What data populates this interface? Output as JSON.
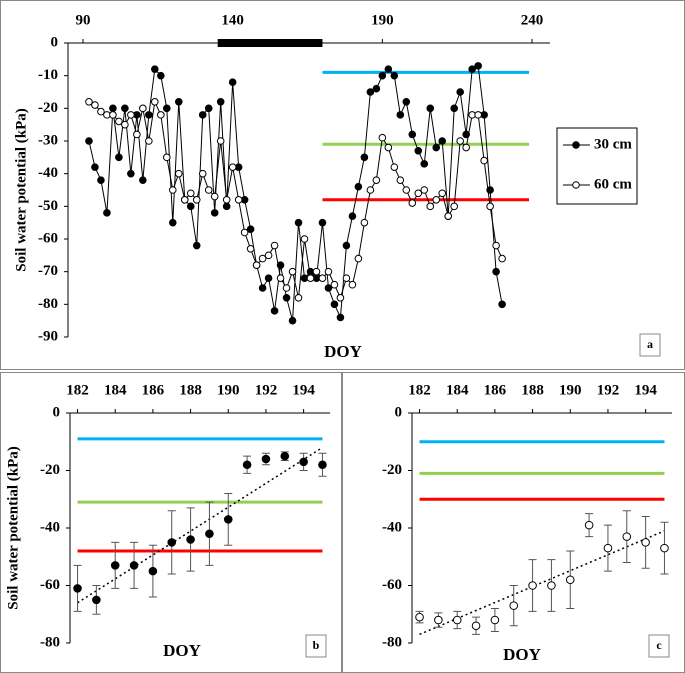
{
  "chart_data": [
    {
      "type": "line",
      "panel": "a",
      "xlabel": "DOY",
      "ylabel": "Soil water potential (kPa)",
      "xlim": [
        85,
        246
      ],
      "xticks": [
        90,
        140,
        190,
        240
      ],
      "ylim": [
        -90,
        0
      ],
      "yticks": [
        0,
        -10,
        -20,
        -30,
        -40,
        -50,
        -60,
        -70,
        -80,
        -90
      ],
      "bar_x": [
        135,
        170
      ],
      "bar_color": "#000000",
      "reference_lines": [
        {
          "value": -9,
          "color": "#00b0f0",
          "x": [
            170,
            239
          ]
        },
        {
          "value": -31,
          "color": "#92d050",
          "x": [
            170,
            239
          ]
        },
        {
          "value": -48,
          "color": "#ff0000",
          "x": [
            170,
            239
          ]
        }
      ],
      "x": [
        92,
        94,
        96,
        98,
        100,
        102,
        104,
        106,
        108,
        110,
        112,
        114,
        116,
        118,
        120,
        122,
        124,
        126,
        128,
        130,
        132,
        134,
        136,
        138,
        140,
        142,
        144,
        146,
        148,
        150,
        152,
        154,
        156,
        158,
        160,
        162,
        164,
        166,
        168,
        170,
        172,
        174,
        176,
        178,
        180,
        182,
        184,
        186,
        188,
        190,
        192,
        194,
        196,
        198,
        200,
        202,
        204,
        206,
        208,
        210,
        212,
        214,
        216,
        218,
        220,
        222,
        224,
        226,
        228,
        230
      ],
      "series": [
        {
          "name": "30 cm",
          "color": "#000000",
          "fill": "#000000",
          "values": [
            -30,
            -38,
            -42,
            -52,
            -20,
            -35,
            -20,
            -40,
            -22,
            -42,
            -22,
            -8,
            -10,
            -20,
            -55,
            -18,
            -48,
            -50,
            -62,
            -22,
            -20,
            -52,
            -18,
            -50,
            -12,
            -38,
            -48,
            -57,
            -68,
            -75,
            -72,
            -82,
            -68,
            -78,
            -85,
            -55,
            -72,
            -70,
            -72,
            -55,
            -75,
            -80,
            -84,
            -62,
            -53,
            -44,
            -35,
            -15,
            -14,
            -10,
            -8,
            -10,
            -22,
            -18,
            -28,
            -33,
            -37,
            -20,
            -32,
            -30,
            -53,
            -20,
            -15,
            -28,
            -8,
            -7,
            -22,
            -45,
            -70,
            -80
          ]
        },
        {
          "name": "60 cm",
          "color": "#000000",
          "fill": "#ffffff",
          "values": [
            -18,
            -19,
            -21,
            -22,
            -22,
            -24,
            -25,
            -22,
            -28,
            -20,
            -30,
            -18,
            -22,
            -35,
            -45,
            -40,
            -48,
            -46,
            -48,
            -40,
            -45,
            -47,
            -30,
            -48,
            -38,
            -48,
            -58,
            -63,
            -68,
            -66,
            -65,
            -62,
            -72,
            -75,
            -70,
            -78,
            -60,
            -72,
            -70,
            -72,
            -70,
            -74,
            -78,
            -72,
            -74,
            -66,
            -55,
            -45,
            -42,
            -29,
            -32,
            -38,
            -42,
            -45,
            -49,
            -46,
            -45,
            -50,
            -48,
            -46,
            -53,
            -50,
            -30,
            -32,
            -22,
            -22,
            -36,
            -50,
            -62,
            -66
          ]
        }
      ]
    },
    {
      "type": "scatter",
      "panel": "b",
      "xlabel": "DOY",
      "ylabel": "Soil  water potential (kPa)",
      "xlim": [
        181.6,
        195.4
      ],
      "xticks": [
        182,
        184,
        186,
        188,
        190,
        192,
        194
      ],
      "ylim": [
        -80,
        0
      ],
      "yticks": [
        0,
        -20,
        -40,
        -60,
        -80
      ],
      "reference_lines": [
        {
          "value": -9,
          "color": "#00b0f0",
          "x": [
            182,
            195
          ]
        },
        {
          "value": -31,
          "color": "#92d050",
          "x": [
            182,
            195
          ]
        },
        {
          "value": -48,
          "color": "#ff0000",
          "x": [
            182,
            195
          ]
        }
      ],
      "x": [
        182,
        183,
        184,
        185,
        186,
        187,
        188,
        189,
        190,
        191,
        192,
        193,
        194,
        195
      ],
      "values": [
        -61,
        -65,
        -53,
        -53,
        -55,
        -45,
        -44,
        -42,
        -37,
        -18,
        -16,
        -15,
        -17,
        -18
      ],
      "errors": [
        8,
        5,
        8,
        8,
        9,
        11,
        11,
        11,
        9,
        3,
        2,
        1.5,
        3,
        4
      ],
      "fill": "#000000",
      "trend": {
        "x": [
          182,
          195
        ],
        "y": [
          -66,
          -12
        ]
      }
    },
    {
      "type": "scatter",
      "panel": "c",
      "xlabel": "DOY",
      "xlim": [
        181.6,
        195.4
      ],
      "xticks": [
        182,
        184,
        186,
        188,
        190,
        192,
        194
      ],
      "ylim": [
        -80,
        0
      ],
      "yticks": [
        0,
        -20,
        -40,
        -60,
        -80
      ],
      "reference_lines": [
        {
          "value": -10,
          "color": "#00b0f0",
          "x": [
            182,
            195
          ]
        },
        {
          "value": -21,
          "color": "#92d050",
          "x": [
            182,
            195
          ]
        },
        {
          "value": -30,
          "color": "#ff0000",
          "x": [
            182,
            195
          ]
        }
      ],
      "x": [
        182,
        183,
        184,
        185,
        186,
        187,
        188,
        189,
        190,
        191,
        192,
        193,
        194,
        195
      ],
      "values": [
        -71,
        -72,
        -72,
        -74,
        -72,
        -67,
        -60,
        -60,
        -58,
        -39,
        -47,
        -43,
        -45,
        -47
      ],
      "errors": [
        2,
        2.5,
        3,
        3,
        4,
        7,
        9,
        9,
        10,
        4,
        8,
        9,
        9,
        9
      ],
      "fill": "#ffffff",
      "trend": {
        "x": [
          182,
          195
        ],
        "y": [
          -77,
          -41
        ]
      }
    }
  ]
}
